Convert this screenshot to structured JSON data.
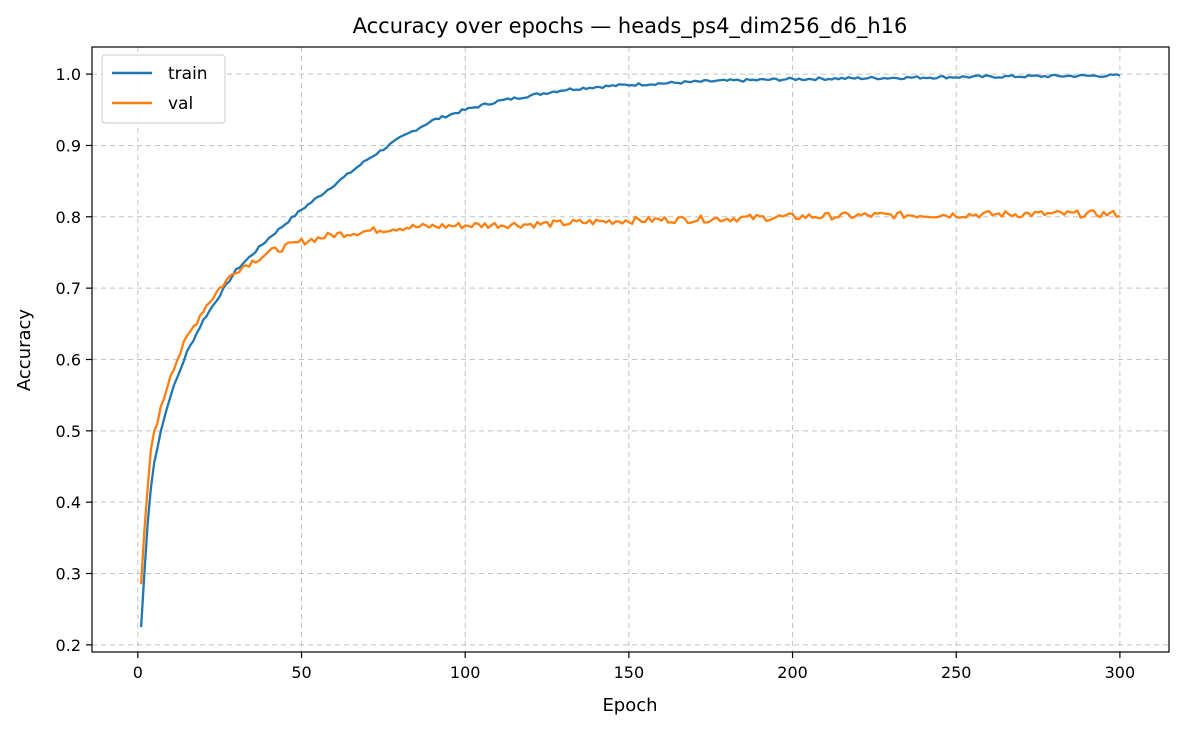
{
  "chart_data": {
    "type": "line",
    "title": "Accuracy over epochs — heads_ps4_dim256_d6_h16",
    "xlabel": "Epoch",
    "ylabel": "Accuracy",
    "xlim": [
      -14,
      315
    ],
    "ylim": [
      0.19,
      1.038
    ],
    "xticks": [
      0,
      50,
      100,
      150,
      200,
      250,
      300
    ],
    "yticks": [
      0.2,
      0.3,
      0.4,
      0.5,
      0.6,
      0.7,
      0.8,
      0.9,
      1.0
    ],
    "xtick_labels": [
      "0",
      "50",
      "100",
      "150",
      "200",
      "250",
      "300"
    ],
    "ytick_labels": [
      "0.2",
      "0.3",
      "0.4",
      "0.5",
      "0.6",
      "0.7",
      "0.8",
      "0.9",
      "1.0"
    ],
    "grid": true,
    "legend_position": "top-left",
    "epochs": {
      "start": 1,
      "end": 300
    },
    "series": [
      {
        "name": "train",
        "color": "#1f77b4",
        "keypoints": [
          [
            1,
            0.225
          ],
          [
            2,
            0.3
          ],
          [
            3,
            0.37
          ],
          [
            4,
            0.42
          ],
          [
            5,
            0.455
          ],
          [
            7,
            0.5
          ],
          [
            10,
            0.55
          ],
          [
            15,
            0.61
          ],
          [
            20,
            0.655
          ],
          [
            25,
            0.69
          ],
          [
            30,
            0.725
          ],
          [
            40,
            0.77
          ],
          [
            50,
            0.81
          ],
          [
            60,
            0.845
          ],
          [
            70,
            0.88
          ],
          [
            80,
            0.91
          ],
          [
            90,
            0.935
          ],
          [
            100,
            0.95
          ],
          [
            110,
            0.962
          ],
          [
            120,
            0.97
          ],
          [
            130,
            0.978
          ],
          [
            140,
            0.982
          ],
          [
            150,
            0.985
          ],
          [
            175,
            0.99
          ],
          [
            200,
            0.993
          ],
          [
            250,
            0.996
          ],
          [
            300,
            0.998
          ]
        ],
        "noise": 0.002
      },
      {
        "name": "val",
        "color": "#ff7f0e",
        "keypoints": [
          [
            1,
            0.285
          ],
          [
            2,
            0.36
          ],
          [
            3,
            0.42
          ],
          [
            4,
            0.47
          ],
          [
            5,
            0.5
          ],
          [
            7,
            0.53
          ],
          [
            10,
            0.58
          ],
          [
            15,
            0.63
          ],
          [
            20,
            0.67
          ],
          [
            25,
            0.7
          ],
          [
            30,
            0.725
          ],
          [
            40,
            0.75
          ],
          [
            50,
            0.765
          ],
          [
            60,
            0.775
          ],
          [
            70,
            0.78
          ],
          [
            80,
            0.785
          ],
          [
            100,
            0.788
          ],
          [
            125,
            0.79
          ],
          [
            150,
            0.795
          ],
          [
            175,
            0.797
          ],
          [
            200,
            0.8
          ],
          [
            225,
            0.802
          ],
          [
            250,
            0.803
          ],
          [
            275,
            0.804
          ],
          [
            300,
            0.804
          ]
        ],
        "noise": 0.005
      }
    ]
  }
}
